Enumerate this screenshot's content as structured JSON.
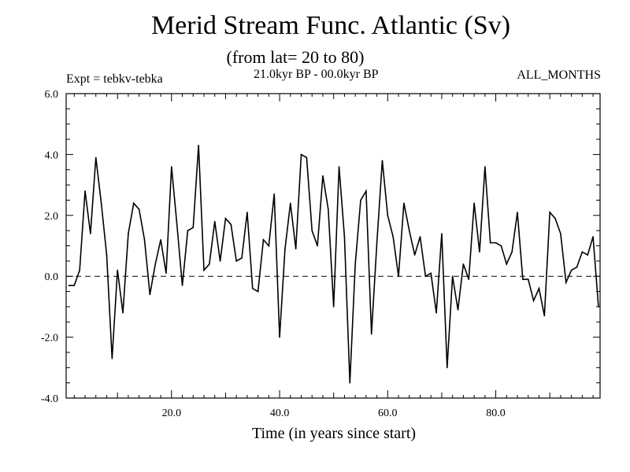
{
  "chart_data": {
    "type": "line",
    "title": "Merid Stream Func. Atlantic (Sv)",
    "subtitle": "(from lat= 20 to 80)",
    "experiment_label": "Expt = tebkv-tebka",
    "period_label": "21.0kyr BP - 00.0kyr BP",
    "months_label": "ALL_MONTHS",
    "xlabel": "Time (in years since start)",
    "ylabel": "",
    "xlim": [
      0.5,
      99.3
    ],
    "ylim": [
      -4.0,
      6.0
    ],
    "x_ticks": [
      20,
      40,
      60,
      80
    ],
    "x_tick_labels": [
      "20.0",
      "40.0",
      "60.0",
      "80.0"
    ],
    "y_ticks": [
      -4,
      -2,
      0,
      2,
      4,
      6
    ],
    "y_tick_labels": [
      "-4.0",
      "-2.0",
      "0.0",
      "2.0",
      "4.0",
      "6.0"
    ],
    "reference_line": 0.0,
    "series": [
      {
        "name": "Merid Stream Func. Atlantic",
        "x": [
          1,
          2,
          3,
          4,
          5,
          6,
          7,
          8,
          9,
          10,
          11,
          12,
          13,
          14,
          15,
          16,
          17,
          18,
          19,
          20,
          21,
          22,
          23,
          24,
          25,
          26,
          27,
          28,
          29,
          30,
          31,
          32,
          33,
          34,
          35,
          36,
          37,
          38,
          39,
          40,
          41,
          42,
          43,
          44,
          45,
          46,
          47,
          48,
          49,
          50,
          51,
          52,
          53,
          54,
          55,
          56,
          57,
          58,
          59,
          60,
          61,
          62,
          63,
          64,
          65,
          66,
          67,
          68,
          69,
          70,
          71,
          72,
          73,
          74,
          75,
          76,
          77,
          78,
          79,
          80,
          81,
          82,
          83,
          84,
          85,
          86,
          87,
          88,
          89,
          90,
          91,
          92,
          93,
          94,
          95,
          96,
          97,
          98,
          99
        ],
        "values": [
          -0.3,
          -0.3,
          0.2,
          2.8,
          1.4,
          3.9,
          2.4,
          0.7,
          -2.7,
          0.2,
          -1.2,
          1.4,
          2.4,
          2.2,
          1.2,
          -0.6,
          0.4,
          1.2,
          0.1,
          3.6,
          1.7,
          -0.3,
          1.5,
          1.6,
          4.3,
          0.2,
          0.4,
          1.8,
          0.5,
          1.9,
          1.7,
          0.5,
          0.6,
          2.1,
          -0.4,
          -0.5,
          1.2,
          1.0,
          2.7,
          -2.0,
          0.9,
          2.4,
          0.9,
          4.0,
          3.9,
          1.5,
          1.0,
          3.3,
          2.2,
          -1.0,
          3.6,
          1.3,
          -3.5,
          0.4,
          2.5,
          2.8,
          -1.9,
          1.1,
          3.8,
          2.0,
          1.3,
          0.0,
          2.4,
          1.5,
          0.7,
          1.3,
          0.0,
          0.1,
          -1.2,
          1.4,
          -3.0,
          0.0,
          -1.1,
          0.4,
          -0.1,
          2.4,
          0.8,
          3.6,
          1.1,
          1.1,
          1.0,
          0.4,
          0.8,
          2.1,
          -0.1,
          -0.1,
          -0.8,
          -0.4,
          -1.3,
          2.1,
          1.9,
          1.4,
          -0.2,
          0.2,
          0.3,
          0.8,
          0.7,
          1.3,
          -1.0
        ]
      }
    ]
  },
  "colors": {
    "line": "#000000",
    "background": "#ffffff"
  }
}
